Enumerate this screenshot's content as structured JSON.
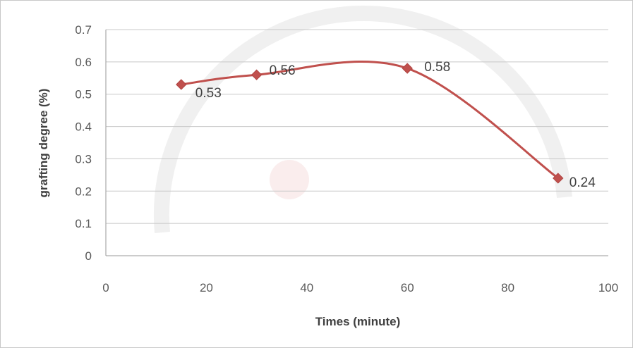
{
  "chart_data": {
    "type": "line",
    "smooth": true,
    "x": [
      15,
      30,
      60,
      90
    ],
    "series": [
      {
        "values": [
          0.53,
          0.56,
          0.58,
          0.24
        ],
        "color": "#c0504d",
        "marker": "diamond"
      }
    ],
    "data_labels": [
      "0.53",
      "0.56",
      "0.58",
      "0.24"
    ],
    "xlabel": "Times (minute)",
    "ylabel": "grafting degree (%)",
    "xlim": [
      0,
      100
    ],
    "ylim": [
      0,
      0.7
    ],
    "xticks": [
      0,
      20,
      40,
      60,
      80,
      100
    ],
    "yticks": [
      0,
      0.1,
      0.2,
      0.3,
      0.4,
      0.5,
      0.6,
      0.7
    ],
    "xtick_labels": [
      "0",
      "20",
      "40",
      "60",
      "80",
      "100"
    ],
    "ytick_labels": [
      "0",
      "0.1",
      "0.2",
      "0.3",
      "0.4",
      "0.5",
      "0.6",
      "0.7"
    ],
    "grid": "horizontal"
  }
}
